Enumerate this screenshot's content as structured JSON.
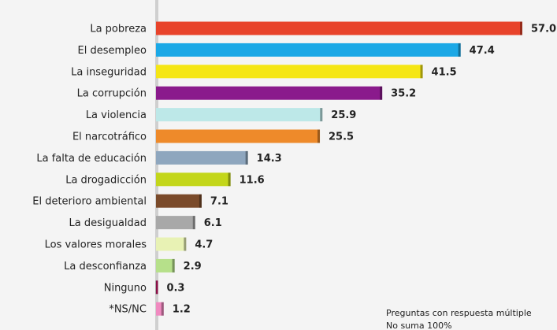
{
  "chart_data": {
    "type": "barh",
    "categories": [
      "La pobreza",
      "El desempleo",
      "La inseguridad",
      "La corrupción",
      "La violencia",
      "El narcotráfico",
      "La falta de educación",
      "La drogadicción",
      "El deterioro ambiental",
      "La desigualdad",
      "Los valores morales",
      "La desconfianza",
      "Ninguno",
      "*NS/NC"
    ],
    "values": [
      57.0,
      47.4,
      41.5,
      35.2,
      25.9,
      25.5,
      14.3,
      11.6,
      7.1,
      6.1,
      4.7,
      2.9,
      0.3,
      1.2
    ],
    "value_labels": [
      "57.0",
      "47.4",
      "41.5",
      "35.2",
      "25.9",
      "25.5",
      "14.3",
      "11.6",
      "7.1",
      "6.1",
      "4.7",
      "2.9",
      "0.3",
      "1.2"
    ],
    "colors": [
      "#e8432a",
      "#1ba8e6",
      "#f5e614",
      "#8a1a8c",
      "#bde8e8",
      "#ee8a2a",
      "#8ea6be",
      "#c3d61a",
      "#7a4a2a",
      "#a8a8a8",
      "#e8f2b4",
      "#b6e08a",
      "#d6186e",
      "#f08ac0"
    ],
    "annotations": [
      "Preguntas con respuesta múltiple",
      "No suma 100%"
    ]
  }
}
